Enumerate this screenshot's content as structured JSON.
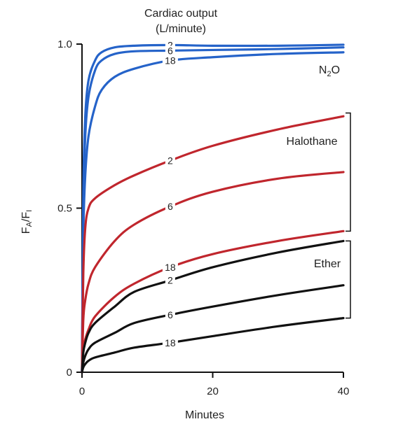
{
  "chart_data": {
    "type": "line",
    "title_line1": "Cardiac output",
    "title_line2": "(L/minute)",
    "xlabel": "Minutes",
    "ylabel_main": "F",
    "ylabel_sub1": "A",
    "ylabel_mid": "/F",
    "ylabel_sub2": "I",
    "xlim": [
      0,
      40
    ],
    "ylim": [
      0,
      1.0
    ],
    "x_ticks": [
      {
        "value": 0,
        "label": "0"
      },
      {
        "value": 20,
        "label": "20"
      },
      {
        "value": 40,
        "label": "40"
      }
    ],
    "y_ticks": [
      {
        "value": 0,
        "label": "0"
      },
      {
        "value": 0.5,
        "label": "0.5"
      },
      {
        "value": 1.0,
        "label": "1.0"
      }
    ],
    "groups": [
      {
        "label": "N",
        "label_sub": "2",
        "label_suffix": "O",
        "color": "#2563c9"
      },
      {
        "label": "Halothane",
        "label_sub": "",
        "label_suffix": "",
        "color": "#c0262d"
      },
      {
        "label": "Ether",
        "label_sub": "",
        "label_suffix": "",
        "color": "#111111"
      }
    ],
    "series": [
      {
        "group": 0,
        "label": "2",
        "label_x": 13.5,
        "points": [
          [
            0,
            0
          ],
          [
            0.2,
            0.55
          ],
          [
            0.5,
            0.78
          ],
          [
            1,
            0.89
          ],
          [
            2,
            0.95
          ],
          [
            3,
            0.975
          ],
          [
            5,
            0.99
          ],
          [
            8,
            0.995
          ],
          [
            13.5,
            0.997
          ],
          [
            20,
            0.995
          ],
          [
            30,
            0.995
          ],
          [
            40,
            0.998
          ]
        ]
      },
      {
        "group": 0,
        "label": "6",
        "label_x": 13.5,
        "points": [
          [
            0,
            0
          ],
          [
            0.2,
            0.5
          ],
          [
            0.5,
            0.72
          ],
          [
            1,
            0.84
          ],
          [
            2,
            0.92
          ],
          [
            3,
            0.95
          ],
          [
            5,
            0.97
          ],
          [
            8,
            0.978
          ],
          [
            13.5,
            0.98
          ],
          [
            20,
            0.982
          ],
          [
            30,
            0.985
          ],
          [
            40,
            0.99
          ]
        ]
      },
      {
        "group": 0,
        "label": "18",
        "label_x": 13.5,
        "points": [
          [
            0,
            0
          ],
          [
            0.2,
            0.42
          ],
          [
            0.5,
            0.6
          ],
          [
            1,
            0.72
          ],
          [
            2,
            0.81
          ],
          [
            3,
            0.86
          ],
          [
            5,
            0.9
          ],
          [
            8,
            0.925
          ],
          [
            13.5,
            0.95
          ],
          [
            20,
            0.96
          ],
          [
            30,
            0.97
          ],
          [
            40,
            0.975
          ]
        ]
      },
      {
        "group": 1,
        "label": "2",
        "label_x": 13.5,
        "points": [
          [
            0,
            0
          ],
          [
            0.2,
            0.3
          ],
          [
            0.5,
            0.44
          ],
          [
            1,
            0.5
          ],
          [
            2,
            0.53
          ],
          [
            5,
            0.57
          ],
          [
            8,
            0.6
          ],
          [
            13.5,
            0.645
          ],
          [
            20,
            0.69
          ],
          [
            30,
            0.74
          ],
          [
            40,
            0.78
          ]
        ]
      },
      {
        "group": 1,
        "label": "6",
        "label_x": 13.5,
        "points": [
          [
            0,
            0
          ],
          [
            0.2,
            0.16
          ],
          [
            0.5,
            0.22
          ],
          [
            1,
            0.27
          ],
          [
            2,
            0.32
          ],
          [
            5,
            0.4
          ],
          [
            8,
            0.45
          ],
          [
            13.5,
            0.505
          ],
          [
            20,
            0.55
          ],
          [
            30,
            0.59
          ],
          [
            40,
            0.61
          ]
        ]
      },
      {
        "group": 1,
        "label": "18",
        "label_x": 13.5,
        "points": [
          [
            0,
            0
          ],
          [
            0.2,
            0.07
          ],
          [
            0.5,
            0.1
          ],
          [
            1,
            0.13
          ],
          [
            2,
            0.17
          ],
          [
            5,
            0.23
          ],
          [
            8,
            0.27
          ],
          [
            13.5,
            0.32
          ],
          [
            20,
            0.36
          ],
          [
            30,
            0.4
          ],
          [
            40,
            0.43
          ]
        ]
      },
      {
        "group": 2,
        "label": "2",
        "label_x": 13.5,
        "points": [
          [
            0,
            0
          ],
          [
            0.2,
            0.06
          ],
          [
            0.5,
            0.09
          ],
          [
            1,
            0.12
          ],
          [
            2,
            0.15
          ],
          [
            5,
            0.2
          ],
          [
            8,
            0.245
          ],
          [
            13.5,
            0.28
          ],
          [
            20,
            0.32
          ],
          [
            30,
            0.365
          ],
          [
            40,
            0.4
          ]
        ]
      },
      {
        "group": 2,
        "label": "6",
        "label_x": 13.5,
        "points": [
          [
            0,
            0
          ],
          [
            0.2,
            0.03
          ],
          [
            0.5,
            0.05
          ],
          [
            1,
            0.07
          ],
          [
            2,
            0.09
          ],
          [
            5,
            0.12
          ],
          [
            8,
            0.15
          ],
          [
            13.5,
            0.175
          ],
          [
            20,
            0.2
          ],
          [
            30,
            0.235
          ],
          [
            40,
            0.265
          ]
        ]
      },
      {
        "group": 2,
        "label": "18",
        "label_x": 13.5,
        "points": [
          [
            0,
            0
          ],
          [
            0.2,
            0.015
          ],
          [
            0.5,
            0.025
          ],
          [
            1,
            0.035
          ],
          [
            2,
            0.045
          ],
          [
            5,
            0.06
          ],
          [
            8,
            0.075
          ],
          [
            13.5,
            0.09
          ],
          [
            20,
            0.11
          ],
          [
            30,
            0.14
          ],
          [
            40,
            0.165
          ]
        ]
      }
    ],
    "brackets": [
      {
        "group": 1,
        "y_top": 0.79,
        "y_bottom": 0.43
      },
      {
        "group": 2,
        "y_top": 0.4,
        "y_bottom": 0.165
      }
    ],
    "grid": false,
    "legend": "none"
  }
}
